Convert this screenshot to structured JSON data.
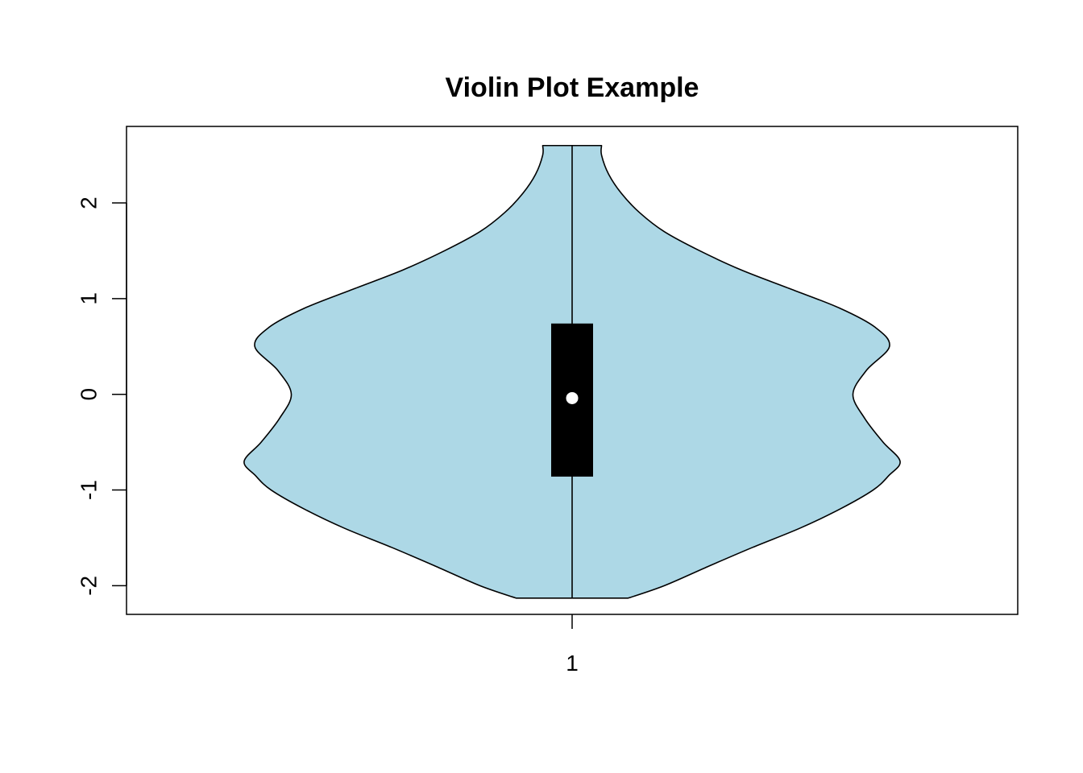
{
  "chart_data": {
    "type": "violin",
    "title": "Violin Plot Example",
    "xlabel": "",
    "ylabel": "",
    "categories": [
      "1"
    ],
    "ylim": [
      -2.3,
      2.8
    ],
    "y_ticks": [
      "-2",
      "-1",
      "0",
      "1",
      "2"
    ],
    "fill_color": "#add8e6",
    "outline_color": "#000000",
    "box_color": "#000000",
    "median_color": "#ffffff",
    "series": [
      {
        "category": "1",
        "min": -2.13,
        "q1": -0.86,
        "median": -0.04,
        "q3": 0.74,
        "max": 2.6,
        "density": [
          {
            "y": -2.13,
            "w": 0.158
          },
          {
            "y": -2.0,
            "w": 0.26
          },
          {
            "y": -1.8,
            "w": 0.383
          },
          {
            "y": -1.6,
            "w": 0.509
          },
          {
            "y": -1.4,
            "w": 0.642
          },
          {
            "y": -1.2,
            "w": 0.755
          },
          {
            "y": -1.0,
            "w": 0.849
          },
          {
            "y": -0.85,
            "w": 0.893
          },
          {
            "y": -0.7,
            "w": 0.925
          },
          {
            "y": -0.5,
            "w": 0.877
          },
          {
            "y": -0.25,
            "w": 0.825
          },
          {
            "y": 0.0,
            "w": 0.792
          },
          {
            "y": 0.25,
            "w": 0.83
          },
          {
            "y": 0.5,
            "w": 0.895
          },
          {
            "y": 0.7,
            "w": 0.855
          },
          {
            "y": 0.9,
            "w": 0.755
          },
          {
            "y": 1.1,
            "w": 0.617
          },
          {
            "y": 1.3,
            "w": 0.477
          },
          {
            "y": 1.5,
            "w": 0.36
          },
          {
            "y": 1.7,
            "w": 0.26
          },
          {
            "y": 1.9,
            "w": 0.19
          },
          {
            "y": 2.1,
            "w": 0.139
          },
          {
            "y": 2.3,
            "w": 0.103
          },
          {
            "y": 2.5,
            "w": 0.083
          },
          {
            "y": 2.6,
            "w": 0.083
          }
        ]
      }
    ]
  }
}
